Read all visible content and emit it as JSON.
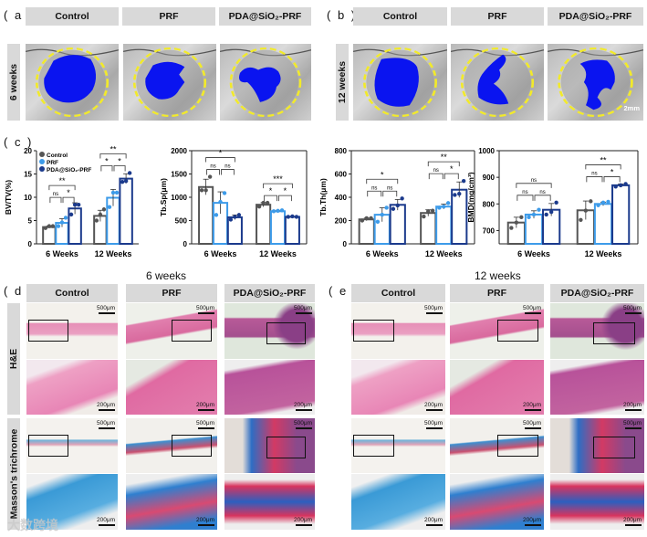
{
  "panel_a": {
    "label": "( a )",
    "row_label": "6 weeks",
    "columns": [
      "Control",
      "PRF",
      "PDA@SiO₂-PRF"
    ]
  },
  "panel_b": {
    "label": "( b )",
    "row_label": "12 weeks",
    "columns": [
      "Control",
      "PRF",
      "PDA@SiO₂-PRF"
    ],
    "scale_bar": "2mm"
  },
  "panel_c": {
    "label": "( c )"
  },
  "panel_d": {
    "label": "( d )",
    "title": "6 weeks",
    "columns": [
      "Control",
      "PRF",
      "PDA@SiO₂-PRF"
    ],
    "rows": [
      "H&E",
      "Masson's trichrome"
    ],
    "scale_top": "500μm",
    "scale_bottom": "200μm"
  },
  "panel_e": {
    "label": "( e )",
    "title": "12 weeks",
    "columns": [
      "Control",
      "PRF",
      "PDA@SiO₂-PRF"
    ],
    "scale_top": "500μm",
    "scale_bottom": "200μm"
  },
  "watermark": "大数跨境",
  "colors": {
    "control": "#555555",
    "prf": "#3d9be9",
    "pda": "#1b3a8c",
    "ct_defect": "#0a14f0",
    "ct_circle": "#f2ea2a"
  },
  "chart_data": [
    {
      "type": "bar",
      "ylabel": "BV/TV(%)",
      "categories": [
        "6  Weeks",
        "12  Weeks"
      ],
      "ylim": [
        0,
        20
      ],
      "yticks": [
        0,
        5,
        10,
        15,
        20
      ],
      "legend": [
        "Control",
        "PRF",
        "PDA@SiO₂-PRF"
      ],
      "legend_position": "top-left",
      "series": [
        {
          "name": "Control",
          "values": [
            3.6,
            6.0
          ],
          "points": [
            [
              3.4,
              3.8,
              3.8
            ],
            [
              5.0,
              6.3,
              7.4
            ]
          ]
        },
        {
          "name": "PRF",
          "values": [
            4.5,
            9.9
          ],
          "points": [
            [
              3.8,
              4.6,
              5.6
            ],
            [
              7.9,
              11.0,
              11.0
            ]
          ]
        },
        {
          "name": "PDA@SiO₂-PRF",
          "values": [
            7.6,
            14.0
          ],
          "points": [
            [
              6.3,
              8.4,
              8.4
            ],
            [
              13.3,
              13.5,
              15.2
            ]
          ]
        }
      ],
      "significance": [
        [
          "ns",
          "*",
          "**"
        ],
        [
          "*",
          "*",
          "**"
        ]
      ]
    },
    {
      "type": "bar",
      "ylabel": "Tb.Sp(μm)",
      "categories": [
        "6  Weeks",
        "12  Weeks"
      ],
      "ylim": [
        0,
        2000
      ],
      "yticks": [
        0,
        500,
        1000,
        1500,
        2000
      ],
      "series": [
        {
          "name": "Control",
          "values": [
            1220,
            840
          ],
          "points": [
            [
              1150,
              1150,
              1440
            ],
            [
              800,
              880,
              880
            ]
          ]
        },
        {
          "name": "PRF",
          "values": [
            880,
            700
          ],
          "points": [
            [
              620,
              900,
              1090
            ],
            [
              700,
              710,
              720
            ]
          ]
        },
        {
          "name": "PDA@SiO₂-PRF",
          "values": [
            570,
            580
          ],
          "points": [
            [
              520,
              580,
              620
            ],
            [
              580,
              590,
              580
            ]
          ]
        }
      ],
      "significance": [
        [
          "ns",
          "ns",
          "*"
        ],
        [
          "*",
          "*",
          "***"
        ]
      ]
    },
    {
      "type": "bar",
      "ylabel": "Tb.Th(μm)",
      "categories": [
        "6  Weeks",
        "12  Weeks"
      ],
      "ylim": [
        0,
        800
      ],
      "yticks": [
        0,
        200,
        400,
        600,
        800
      ],
      "series": [
        {
          "name": "Control",
          "values": [
            210,
            265
          ],
          "points": [
            [
              200,
              220,
              220
            ],
            [
              235,
              280,
              285
            ]
          ]
        },
        {
          "name": "PRF",
          "values": [
            250,
            320
          ],
          "points": [
            [
              190,
              250,
              310
            ],
            [
              310,
              320,
              350
            ]
          ]
        },
        {
          "name": "PDA@SiO₂-PRF",
          "values": [
            335,
            465
          ],
          "points": [
            [
              300,
              330,
              390
            ],
            [
              420,
              430,
              540
            ]
          ]
        }
      ],
      "significance": [
        [
          "ns",
          "ns",
          "*"
        ],
        [
          "ns",
          "*",
          "**"
        ]
      ]
    },
    {
      "type": "bar",
      "ylabel": "BMD(mg/cm³)",
      "categories": [
        "6  Weeks",
        "12  Weeks"
      ],
      "ylim": [
        650,
        1000
      ],
      "yticks": [
        700,
        800,
        900,
        1000
      ],
      "series": [
        {
          "name": "Control",
          "values": [
            730,
            776
          ],
          "points": [
            [
              710,
              730,
              750
            ],
            [
              740,
              775,
              810
            ]
          ]
        },
        {
          "name": "PRF",
          "values": [
            760,
            800
          ],
          "points": [
            [
              750,
              760,
              778
            ],
            [
              795,
              805,
              808
            ]
          ]
        },
        {
          "name": "PDA@SiO₂-PRF",
          "values": [
            778,
            870
          ],
          "points": [
            [
              760,
              770,
              805
            ],
            [
              865,
              870,
              875
            ]
          ]
        }
      ],
      "significance": [
        [
          "ns",
          "ns",
          "ns"
        ],
        [
          "ns",
          "*",
          "**"
        ]
      ]
    }
  ]
}
